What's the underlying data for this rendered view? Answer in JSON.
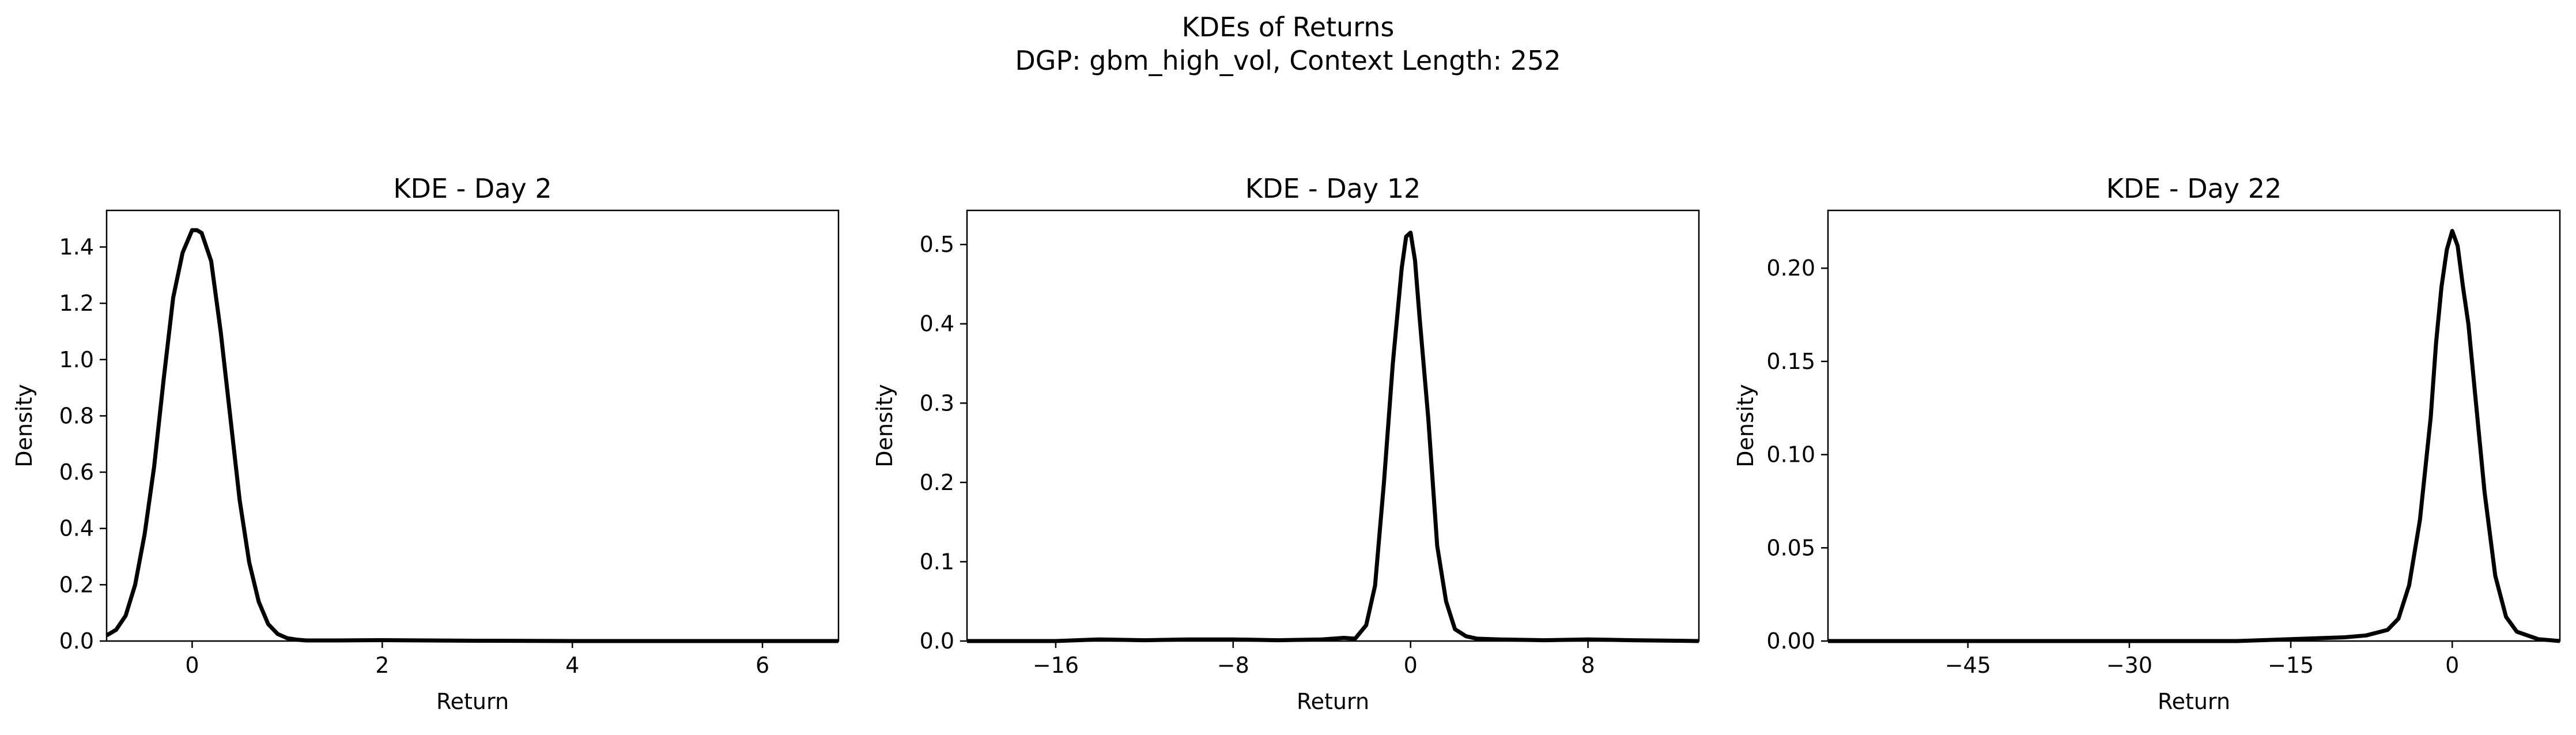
{
  "figure": {
    "title_line1": "KDEs of Returns",
    "title_line2": "DGP: gbm_high_vol, Context Length: 252"
  },
  "chart_data": [
    {
      "type": "line",
      "title": "KDE - Day 2",
      "xlabel": "Return",
      "ylabel": "Density",
      "xlim": [
        -0.9,
        6.8
      ],
      "ylim": [
        0,
        1.53
      ],
      "xticks": [
        0,
        2,
        4,
        6
      ],
      "xtick_labels": [
        "0",
        "2",
        "4",
        "6"
      ],
      "yticks": [
        0,
        0.2,
        0.4,
        0.6,
        0.8,
        1.0,
        1.2,
        1.4
      ],
      "ytick_labels": [
        "0.0",
        "0.2",
        "0.4",
        "0.6",
        "0.8",
        "1.0",
        "1.2",
        "1.4"
      ],
      "line_color": "#000000",
      "grid": false,
      "series": [
        {
          "x": [
            -0.9,
            -0.8,
            -0.7,
            -0.6,
            -0.5,
            -0.4,
            -0.3,
            -0.2,
            -0.1,
            0.0,
            0.05,
            0.1,
            0.2,
            0.3,
            0.4,
            0.5,
            0.6,
            0.7,
            0.8,
            0.9,
            1.0,
            1.1,
            1.2,
            1.5,
            2.0,
            3.0,
            4.0,
            5.0,
            6.0,
            6.8
          ],
          "y": [
            0.02,
            0.04,
            0.09,
            0.2,
            0.38,
            0.62,
            0.93,
            1.22,
            1.38,
            1.46,
            1.46,
            1.45,
            1.35,
            1.1,
            0.8,
            0.5,
            0.28,
            0.14,
            0.06,
            0.025,
            0.01,
            0.005,
            0.002,
            0.002,
            0.003,
            0.001,
            0.0,
            0.0,
            0.0,
            0.0
          ]
        }
      ]
    },
    {
      "type": "line",
      "title": "KDE - Day 12",
      "xlabel": "Return",
      "ylabel": "Density",
      "xlim": [
        -20,
        13
      ],
      "ylim": [
        0,
        0.543
      ],
      "xticks": [
        -16,
        -8,
        0,
        8
      ],
      "xtick_labels": [
        "−16",
        "−8",
        "0",
        "8"
      ],
      "yticks": [
        0,
        0.1,
        0.2,
        0.3,
        0.4,
        0.5
      ],
      "ytick_labels": [
        "0.0",
        "0.1",
        "0.2",
        "0.3",
        "0.4",
        "0.5"
      ],
      "line_color": "#000000",
      "grid": false,
      "series": [
        {
          "x": [
            -20,
            -16,
            -14,
            -12,
            -10,
            -8,
            -6,
            -4,
            -3,
            -2.5,
            -2,
            -1.6,
            -1.2,
            -0.8,
            -0.4,
            -0.2,
            0.0,
            0.2,
            0.4,
            0.8,
            1.2,
            1.6,
            2,
            2.5,
            3,
            4,
            6,
            8,
            10,
            13
          ],
          "y": [
            0.0,
            0.0,
            0.002,
            0.001,
            0.002,
            0.002,
            0.001,
            0.002,
            0.004,
            0.003,
            0.02,
            0.07,
            0.2,
            0.35,
            0.47,
            0.51,
            0.515,
            0.48,
            0.41,
            0.28,
            0.12,
            0.05,
            0.015,
            0.006,
            0.003,
            0.002,
            0.001,
            0.002,
            0.001,
            0.0
          ]
        }
      ]
    },
    {
      "type": "line",
      "title": "KDE - Day 22",
      "xlabel": "Return",
      "ylabel": "Density",
      "xlim": [
        -58,
        10
      ],
      "ylim": [
        0,
        0.231
      ],
      "xticks": [
        -45,
        -30,
        -15,
        0
      ],
      "xtick_labels": [
        "−45",
        "−30",
        "−15",
        "0"
      ],
      "yticks": [
        0,
        0.05,
        0.1,
        0.15,
        0.2
      ],
      "ytick_labels": [
        "0.00",
        "0.05",
        "0.10",
        "0.15",
        "0.20"
      ],
      "line_color": "#000000",
      "grid": false,
      "series": [
        {
          "x": [
            -58,
            -45,
            -30,
            -20,
            -15,
            -10,
            -8,
            -6,
            -5,
            -4,
            -3,
            -2,
            -1.5,
            -1,
            -0.5,
            0.0,
            0.5,
            1,
            1.5,
            2,
            3,
            4,
            5,
            6,
            8,
            10
          ],
          "y": [
            0.0,
            0.0,
            0.0,
            0.0,
            0.001,
            0.002,
            0.003,
            0.006,
            0.012,
            0.03,
            0.065,
            0.12,
            0.16,
            0.19,
            0.21,
            0.22,
            0.212,
            0.19,
            0.17,
            0.14,
            0.08,
            0.035,
            0.013,
            0.005,
            0.001,
            0.0
          ]
        }
      ]
    }
  ]
}
